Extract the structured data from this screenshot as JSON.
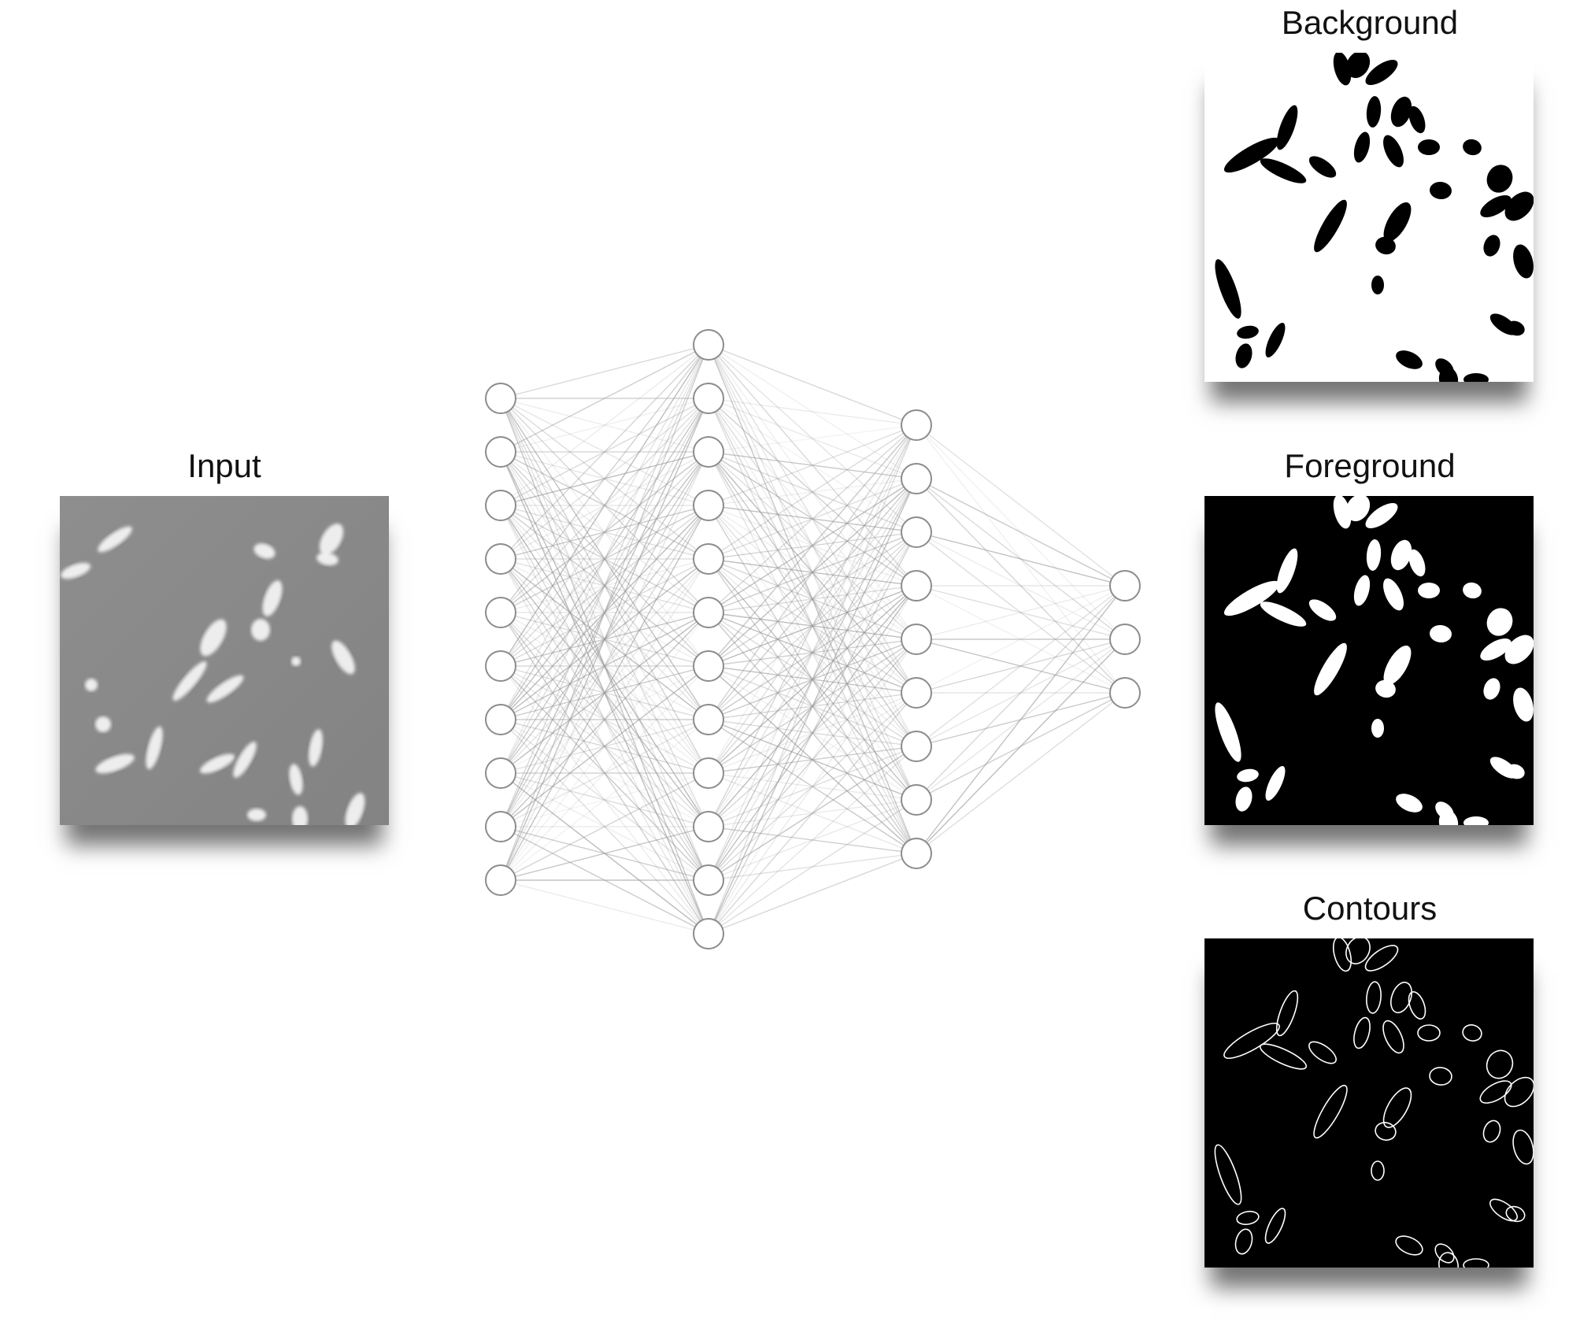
{
  "diagram": {
    "input_title": "Input",
    "outputs": [
      {
        "title": "Background"
      },
      {
        "title": "Foreground"
      },
      {
        "title": "Contours"
      }
    ],
    "network": {
      "layers": [
        10,
        12,
        9,
        3
      ]
    },
    "colors": {
      "input_bg": "#8a8a8a",
      "cell_bright": "#ffffff",
      "background_map_bg": "#ffffff",
      "background_map_cells": "#000000",
      "foreground_map_bg": "#000000",
      "foreground_map_cells": "#ffffff",
      "contour_map_bg": "#000000",
      "contour_stroke": "#ffffff",
      "node_stroke": "#8c8c8c",
      "edge_stroke": "#9a9a9a"
    }
  }
}
